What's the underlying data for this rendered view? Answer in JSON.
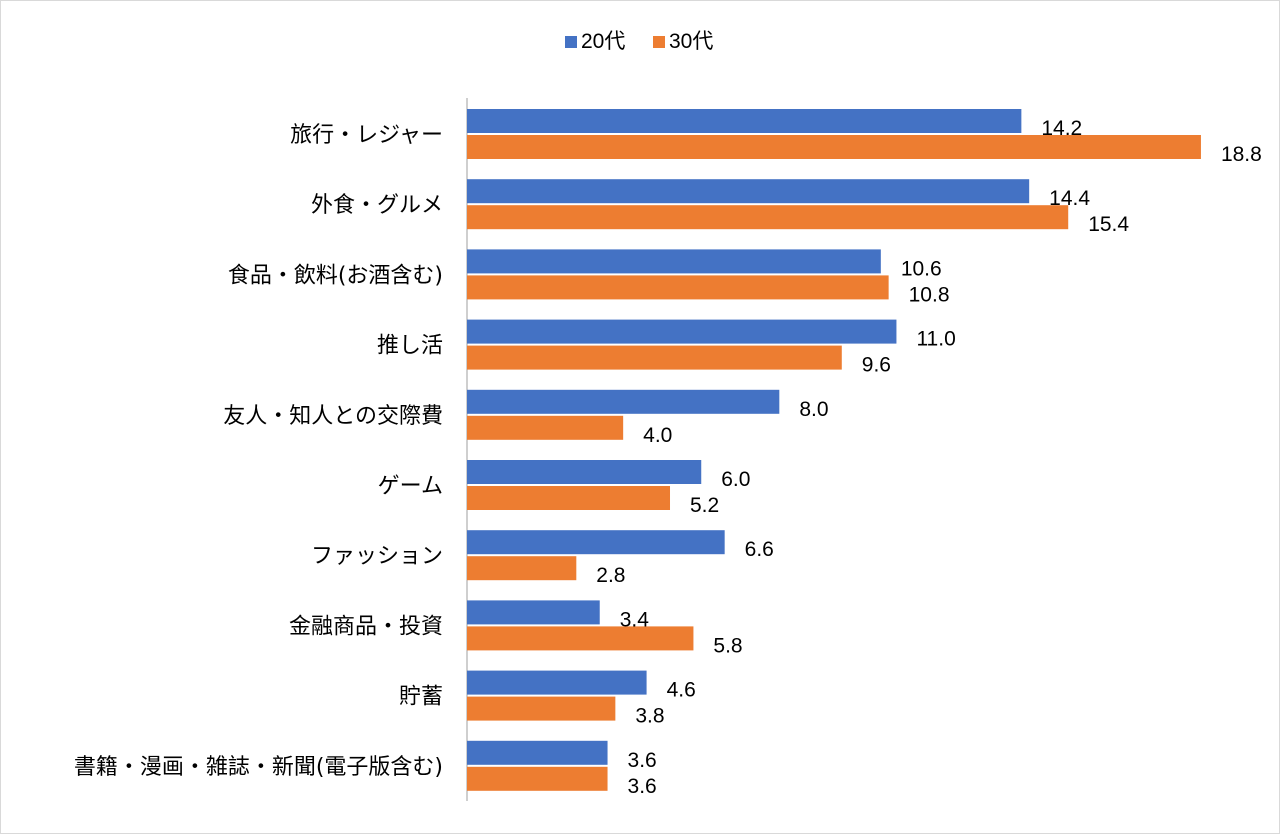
{
  "chart_data": {
    "type": "bar",
    "orientation": "horizontal",
    "title": "",
    "xlabel": "",
    "ylabel": "",
    "legend": {
      "position": "top"
    },
    "grid": false,
    "xlim": [
      0,
      20
    ],
    "categories": [
      "旅行・レジャー",
      "外食・グルメ",
      "食品・飲料(お酒含む)",
      "推し活",
      "友人・知人との交際費",
      "ゲーム",
      "ファッション",
      "金融商品・投資",
      "貯蓄",
      "書籍・漫画・雑誌・新聞(電子版含む)"
    ],
    "series": [
      {
        "name": "20代",
        "color": "#4472c4",
        "values": [
          14.2,
          14.4,
          10.6,
          11.0,
          8.0,
          6.0,
          6.6,
          3.4,
          4.6,
          3.6
        ],
        "labels": [
          "14.2",
          "14.4",
          "10.6",
          "11.0",
          "8.0",
          "6.0",
          "6.6",
          "3.4",
          "4.6",
          "3.6"
        ]
      },
      {
        "name": "30代",
        "color": "#ed7d31",
        "values": [
          18.8,
          15.4,
          10.8,
          9.6,
          4.0,
          5.2,
          2.8,
          5.8,
          3.8,
          3.6
        ],
        "labels": [
          "18.8",
          "15.4",
          "10.8",
          "9.6",
          "4.0",
          "5.2",
          "2.8",
          "5.8",
          "3.8",
          "3.6"
        ]
      }
    ]
  }
}
